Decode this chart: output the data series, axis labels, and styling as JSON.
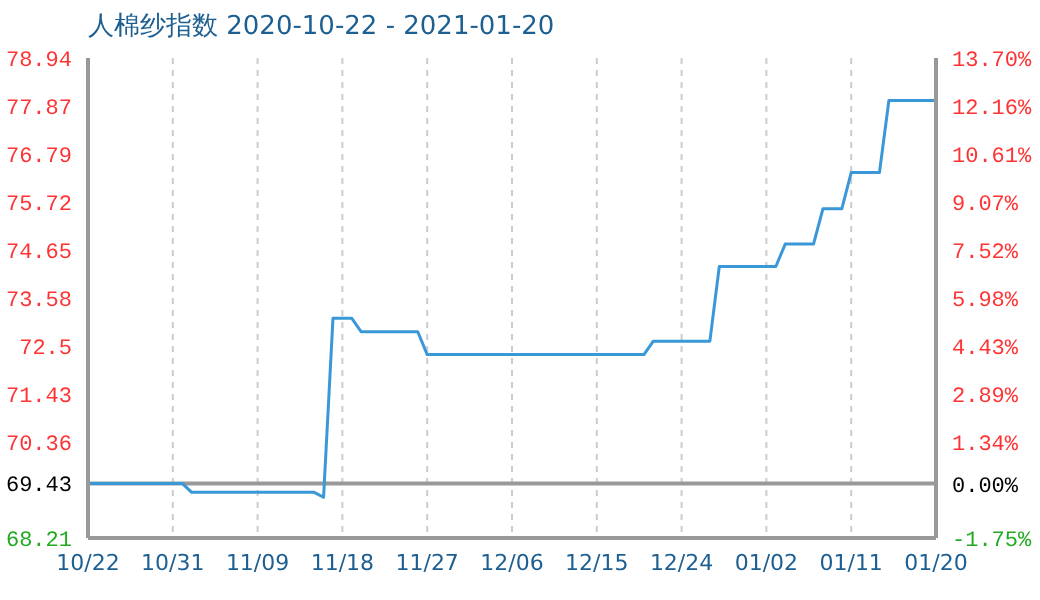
{
  "chart_data": {
    "type": "line",
    "title": "人棉纱指数 2020-10-22 - 2021-01-20",
    "x": [
      "2020-10-22",
      "2020-11-01",
      "2020-11-02",
      "2020-11-15",
      "2020-11-16",
      "2020-11-17",
      "2020-11-19",
      "2020-11-20",
      "2020-11-26",
      "2020-11-27",
      "2020-12-20",
      "2020-12-21",
      "2020-12-27",
      "2020-12-28",
      "2021-01-03",
      "2021-01-04",
      "2021-01-07",
      "2021-01-08",
      "2021-01-10",
      "2021-01-11",
      "2021-01-14",
      "2021-01-15",
      "2021-01-20"
    ],
    "series": [
      {
        "color": "#3a98d8",
        "values": [
          69.43,
          69.43,
          69.23,
          69.23,
          69.12,
          73.12,
          73.12,
          72.82,
          72.82,
          72.31,
          72.31,
          72.61,
          72.61,
          74.28,
          74.28,
          74.78,
          74.78,
          75.57,
          75.57,
          76.38,
          76.38,
          77.99,
          77.99
        ]
      }
    ],
    "xlim": [
      "2020-10-22",
      "2021-01-20"
    ],
    "xticks": [
      {
        "value": "2020-10-22",
        "label": "10/22"
      },
      {
        "value": "2020-10-31",
        "label": "10/31"
      },
      {
        "value": "2020-11-09",
        "label": "11/09"
      },
      {
        "value": "2020-11-18",
        "label": "11/18"
      },
      {
        "value": "2020-11-27",
        "label": "11/27"
      },
      {
        "value": "2020-12-06",
        "label": "12/06"
      },
      {
        "value": "2020-12-15",
        "label": "12/15"
      },
      {
        "value": "2020-12-24",
        "label": "12/24"
      },
      {
        "value": "2021-01-02",
        "label": "01/02"
      },
      {
        "value": "2021-01-11",
        "label": "01/11"
      },
      {
        "value": "2021-01-20",
        "label": "01/20"
      }
    ],
    "ylim": [
      68.21,
      78.94
    ],
    "yticks": [
      68.21,
      69.43,
      70.36,
      71.43,
      72.5,
      73.58,
      74.65,
      75.72,
      76.79,
      77.87,
      78.94
    ],
    "y2lim": [
      -1.75,
      13.7
    ],
    "y2ticks": [
      {
        "value": -1.75,
        "label": "-1.75%"
      },
      {
        "value": 0,
        "label": "0.00%"
      },
      {
        "value": 1.34,
        "label": "1.34%"
      },
      {
        "value": 2.89,
        "label": "2.89%"
      },
      {
        "value": 4.43,
        "label": "4.43%"
      },
      {
        "value": 5.98,
        "label": "5.98%"
      },
      {
        "value": 7.52,
        "label": "7.52%"
      },
      {
        "value": 9.07,
        "label": "9.07%"
      },
      {
        "value": 10.61,
        "label": "10.61%"
      },
      {
        "value": 12.16,
        "label": "12.16%"
      },
      {
        "value": 13.7,
        "label": "13.70%"
      }
    ],
    "ref_lines": [
      {
        "axis": "y",
        "value": 69.43,
        "color": "#999999"
      }
    ],
    "grid": true,
    "marker": "none",
    "line_style": "solid",
    "legend": false
  }
}
